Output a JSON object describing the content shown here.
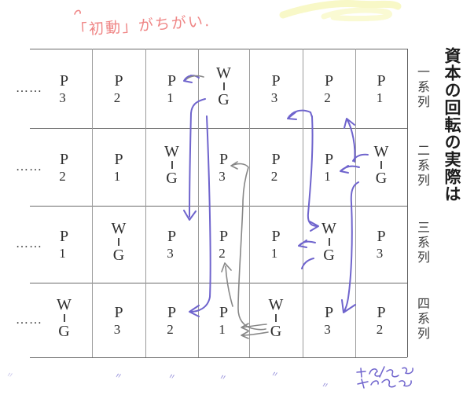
{
  "title": {
    "text": "資本の回転の実際は"
  },
  "red_note": {
    "text": "「初動」がちがい.",
    "color": "#ef8585"
  },
  "table": {
    "leader_dots": "……",
    "rows": [
      {
        "label": "一系列",
        "cells": [
          "P3",
          "P2",
          "P1",
          "W–G",
          "P3",
          "P2",
          "P1"
        ]
      },
      {
        "label": "二系列",
        "cells": [
          "P2",
          "P1",
          "W–G",
          "P3",
          "P2",
          "P1",
          "W–G"
        ]
      },
      {
        "label": "三系列",
        "cells": [
          "P1",
          "W–G",
          "P3",
          "P2",
          "P1",
          "W–G",
          "P3"
        ]
      },
      {
        "label": "四系列",
        "cells": [
          "W–G",
          "P3",
          "P2",
          "P1",
          "W–G",
          "P3",
          "P2"
        ]
      }
    ]
  },
  "annotations": {
    "pen_color": "#6f64cd",
    "pencil_color": "#878787",
    "highlight_color": "#f3f39a",
    "ditto_marks": [
      "〃",
      "〃",
      "〃",
      "〃",
      "〃",
      "〃"
    ],
    "bottom_right_note_lines": [
      "〜3回",
      "〜3回"
    ],
    "arrows": [
      {
        "color": "blue",
        "desc": "row1: W–G to P1 left arrow"
      },
      {
        "color": "blue",
        "desc": "row1 W–G long vertical line down, arrowhead into row3"
      },
      {
        "color": "blue",
        "desc": "row1 W–G long vertical line down, left hook into row4 P2"
      },
      {
        "color": "blue",
        "desc": "row1 P3 (col5) left hook arrow from below"
      },
      {
        "color": "blue",
        "desc": "vertical link col5/6 from row1 down to W–G of row3"
      },
      {
        "color": "blue",
        "desc": "row3: W–G to P1 left arrow and hook"
      },
      {
        "color": "blue",
        "desc": "upward arrow from row2 W–G into row1 P2"
      },
      {
        "color": "blue",
        "desc": "row2: W–G to P1 left arrow and hook"
      },
      {
        "color": "blue",
        "desc": "row2 W–G long vertical line down, arrowhead into row4 P3"
      },
      {
        "color": "pencil",
        "desc": "long pencil line linking row4 P1 up to row2 P3 with left hooks"
      },
      {
        "color": "pencil",
        "desc": "pencil upward arrow into row3 P2"
      },
      {
        "color": "pencil",
        "desc": "pencil strokes from row4 W–G toward P1"
      }
    ]
  }
}
